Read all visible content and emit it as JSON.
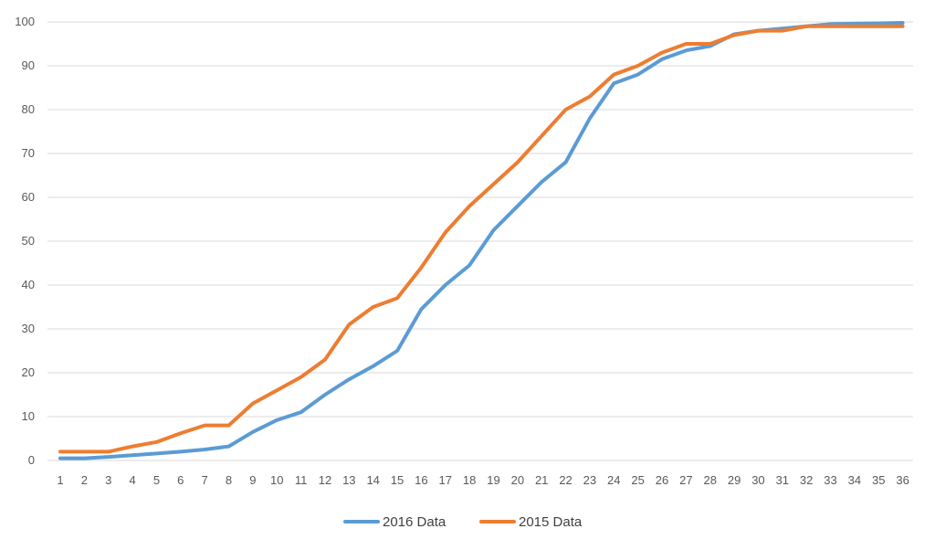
{
  "chart_data": {
    "type": "line",
    "title": "",
    "xlabel": "",
    "ylabel": "",
    "x": [
      1,
      2,
      3,
      4,
      5,
      6,
      7,
      8,
      9,
      10,
      11,
      12,
      13,
      14,
      15,
      16,
      17,
      18,
      19,
      20,
      21,
      22,
      23,
      24,
      25,
      26,
      27,
      28,
      29,
      30,
      31,
      32,
      33,
      34,
      35,
      36
    ],
    "ylim": [
      0,
      100
    ],
    "yticks": [
      0,
      10,
      20,
      30,
      40,
      50,
      60,
      70,
      80,
      90,
      100
    ],
    "grid": true,
    "legend_position": "bottom",
    "series": [
      {
        "name": "2016 Data",
        "color": "#5b9bd5",
        "values": [
          0.5,
          0.5,
          0.8,
          1.2,
          1.6,
          2.0,
          2.5,
          3.2,
          6.5,
          9.2,
          11.0,
          15.0,
          18.5,
          21.5,
          25.0,
          34.5,
          40.0,
          44.5,
          52.5,
          58.0,
          63.5,
          68.0,
          78.0,
          86.0,
          88.0,
          91.5,
          93.5,
          94.5,
          97.2,
          98.0,
          98.5,
          99.0,
          99.5,
          99.6,
          99.7,
          99.8
        ]
      },
      {
        "name": "2015 Data",
        "color": "#ed7d31",
        "values": [
          2.0,
          2.0,
          2.0,
          3.2,
          4.2,
          6.2,
          8.0,
          8.0,
          13.0,
          16.0,
          19.0,
          23.0,
          31.0,
          35.0,
          37.0,
          44.0,
          52.0,
          58.0,
          63.0,
          68.0,
          74.0,
          80.0,
          83.0,
          88.0,
          90.0,
          93.0,
          95.0,
          95.0,
          97.0,
          98.0,
          98.0,
          99.0,
          99.0,
          99.0,
          99.0,
          99.0
        ]
      }
    ]
  }
}
